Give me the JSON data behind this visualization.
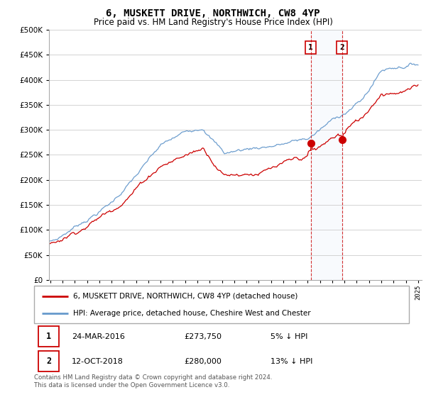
{
  "title": "6, MUSKETT DRIVE, NORTHWICH, CW8 4YP",
  "subtitle": "Price paid vs. HM Land Registry's House Price Index (HPI)",
  "legend_line1": "6, MUSKETT DRIVE, NORTHWICH, CW8 4YP (detached house)",
  "legend_line2": "HPI: Average price, detached house, Cheshire West and Chester",
  "transaction1_date": "24-MAR-2016",
  "transaction1_price": "£273,750",
  "transaction1_hpi": "5% ↓ HPI",
  "transaction2_date": "12-OCT-2018",
  "transaction2_price": "£280,000",
  "transaction2_hpi": "13% ↓ HPI",
  "footer": "Contains HM Land Registry data © Crown copyright and database right 2024.\nThis data is licensed under the Open Government Licence v3.0.",
  "hpi_color": "#6699cc",
  "price_color": "#cc0000",
  "marker1_x": 2016.25,
  "marker1_y": 273750,
  "marker2_x": 2018.8,
  "marker2_y": 280000,
  "vline1_x": 2016.25,
  "vline2_x": 2018.8,
  "ylim": [
    0,
    500000
  ],
  "xlim_start": 1995,
  "xlim_end": 2025
}
